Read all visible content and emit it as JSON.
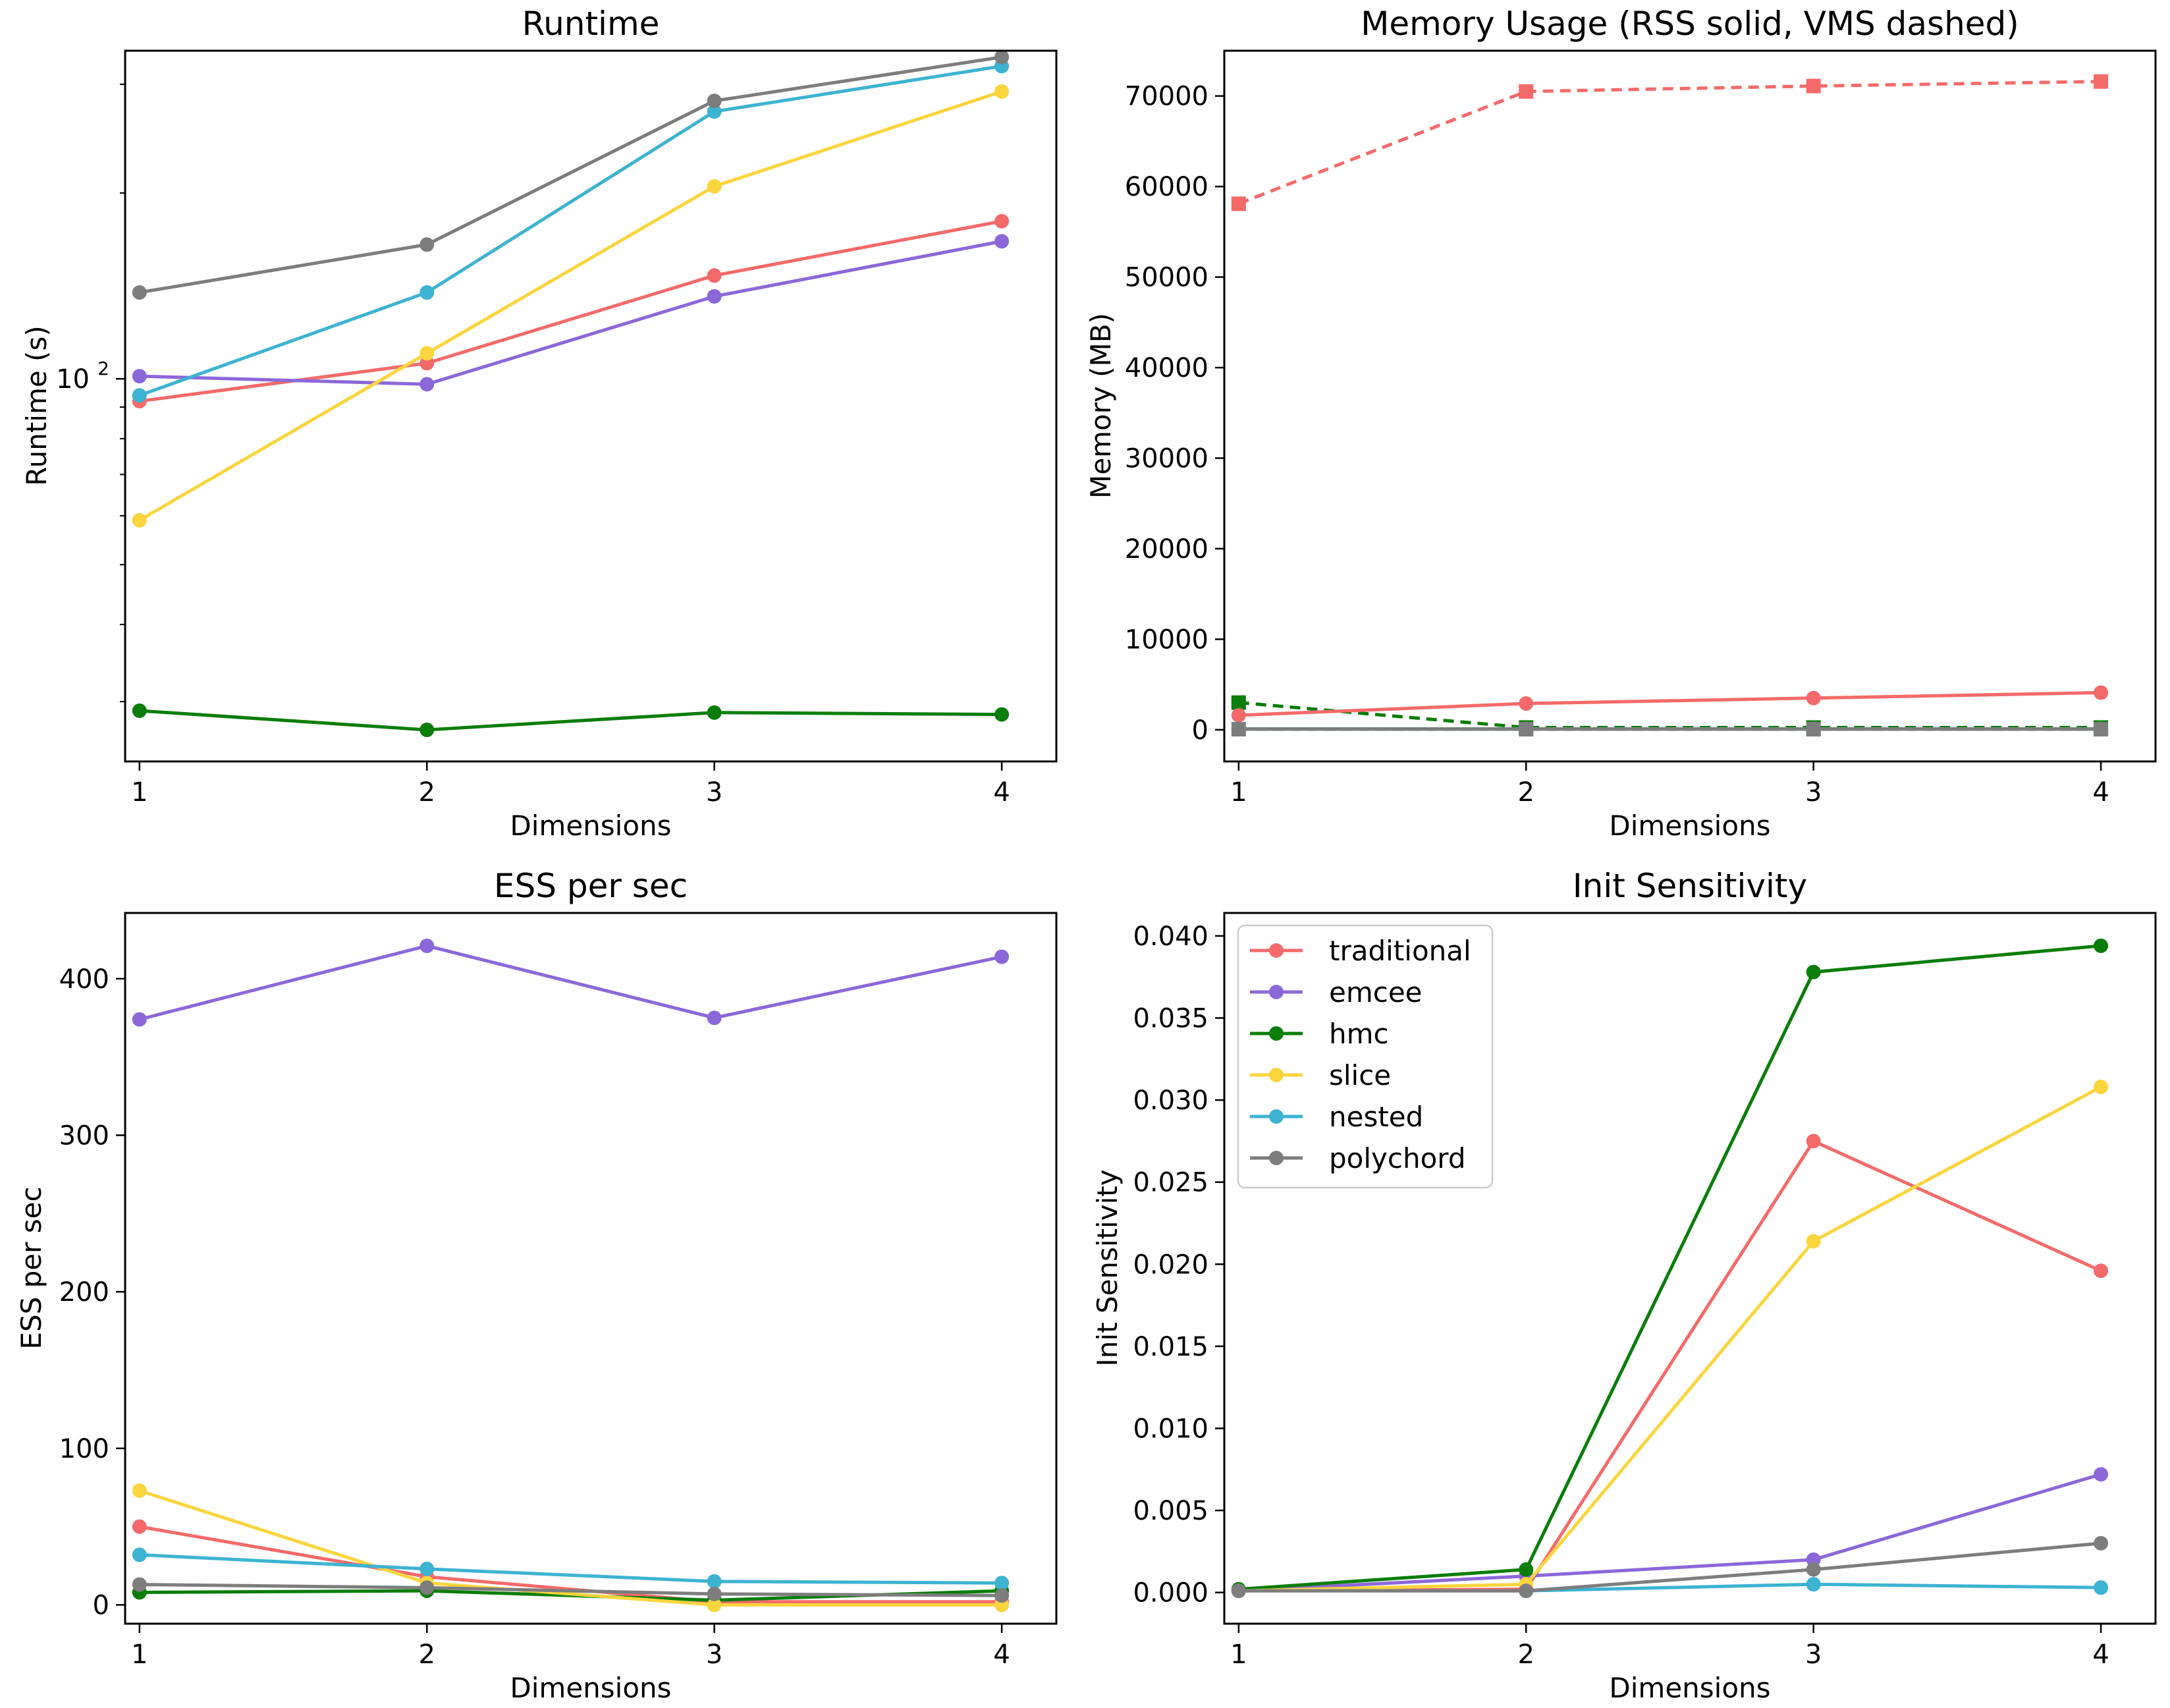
{
  "colors": {
    "traditional": "#f46a6a",
    "emcee": "#8c67d9",
    "hmc": "#0a7d0a",
    "slice": "#fbd53e",
    "nested": "#3db3d2",
    "polychord": "#7d7d7d"
  },
  "legend": [
    "traditional",
    "emcee",
    "hmc",
    "slice",
    "nested",
    "polychord"
  ],
  "chart_data": [
    {
      "id": "runtime",
      "type": "line",
      "title": "Runtime",
      "xlabel": "Dimensions",
      "ylabel": "Runtime (s)",
      "yscale": "log",
      "ylim": [
        24,
        340
      ],
      "xlim": [
        0.95,
        4.19
      ],
      "x": [
        1,
        2,
        3,
        4
      ],
      "xticks": [
        "1",
        "2",
        "3",
        "4"
      ],
      "yticks": [
        {
          "value": 100,
          "label": "10",
          "sup": "2"
        }
      ],
      "minor_yticks": [
        30,
        40,
        50,
        60,
        70,
        80,
        90,
        200,
        300
      ],
      "series": [
        {
          "name": "traditional",
          "values": [
            92,
            106,
            147,
            180
          ]
        },
        {
          "name": "emcee",
          "values": [
            101,
            98,
            136,
            167
          ]
        },
        {
          "name": "hmc",
          "values": [
            29,
            27,
            28.8,
            28.6
          ]
        },
        {
          "name": "slice",
          "values": [
            59,
            110,
            205,
            292
          ]
        },
        {
          "name": "nested",
          "values": [
            94,
            138,
            271,
            321
          ]
        },
        {
          "name": "polychord",
          "values": [
            138,
            165,
            282,
            332
          ]
        }
      ]
    },
    {
      "id": "memory",
      "type": "line",
      "title": "Memory Usage (RSS solid, VMS dashed)",
      "xlabel": "Dimensions",
      "ylabel": "Memory (MB)",
      "ylim": [
        -3500,
        75000
      ],
      "xlim": [
        0.95,
        4.19
      ],
      "x": [
        1,
        2,
        3,
        4
      ],
      "xticks": [
        "1",
        "2",
        "3",
        "4"
      ],
      "yticks": [
        0,
        10000,
        20000,
        30000,
        40000,
        50000,
        60000,
        70000
      ],
      "series": [
        {
          "name": "traditional",
          "style": "dashed",
          "values": [
            58100,
            70500,
            71100,
            71600
          ]
        },
        {
          "name": "hmc",
          "style": "dashed",
          "values": [
            3000,
            250,
            250,
            250
          ]
        },
        {
          "name": "polychord",
          "style": "dashed",
          "values": [
            60,
            60,
            60,
            60
          ]
        },
        {
          "name": "traditional",
          "style": "solid",
          "values": [
            1600,
            2900,
            3500,
            4100
          ]
        },
        {
          "name": "emcee",
          "style": "solid",
          "values": [
            80,
            80,
            80,
            80
          ]
        },
        {
          "name": "hmc",
          "style": "solid",
          "values": [
            80,
            80,
            80,
            80
          ]
        },
        {
          "name": "slice",
          "style": "solid",
          "values": [
            80,
            80,
            80,
            80
          ]
        },
        {
          "name": "nested",
          "style": "solid",
          "values": [
            80,
            80,
            80,
            80
          ]
        },
        {
          "name": "polychord",
          "style": "solid",
          "values": [
            80,
            80,
            80,
            80
          ]
        }
      ]
    },
    {
      "id": "ess",
      "type": "line",
      "title": "ESS per sec",
      "xlabel": "Dimensions",
      "ylabel": "ESS per sec",
      "ylim": [
        -12,
        442
      ],
      "xlim": [
        0.95,
        4.19
      ],
      "x": [
        1,
        2,
        3,
        4
      ],
      "xticks": [
        "1",
        "2",
        "3",
        "4"
      ],
      "yticks": [
        0,
        100,
        200,
        300,
        400
      ],
      "series": [
        {
          "name": "traditional",
          "values": [
            50,
            18,
            2,
            2
          ]
        },
        {
          "name": "emcee",
          "values": [
            374,
            421,
            375,
            414
          ]
        },
        {
          "name": "hmc",
          "values": [
            8,
            9,
            3,
            9
          ]
        },
        {
          "name": "slice",
          "values": [
            73,
            14,
            0,
            0
          ]
        },
        {
          "name": "nested",
          "values": [
            32,
            23,
            15,
            14
          ]
        },
        {
          "name": "polychord",
          "values": [
            13,
            11,
            7,
            6
          ]
        }
      ]
    },
    {
      "id": "init",
      "type": "line",
      "title": "Init Sensitivity",
      "xlabel": "Dimensions",
      "ylabel": "Init Sensitivity",
      "ylim": [
        -0.0019,
        0.0414
      ],
      "xlim": [
        0.95,
        4.19
      ],
      "x": [
        1,
        2,
        3,
        4
      ],
      "xticks": [
        "1",
        "2",
        "3",
        "4"
      ],
      "yticks": [
        "0.000",
        "0.005",
        "0.010",
        "0.015",
        "0.020",
        "0.025",
        "0.030",
        "0.035",
        "0.040"
      ],
      "legend_position": "upper left",
      "series": [
        {
          "name": "traditional",
          "values": [
            0.0001,
            0.0002,
            0.0275,
            0.0196
          ]
        },
        {
          "name": "emcee",
          "values": [
            0.0001,
            0.001,
            0.002,
            0.0072
          ]
        },
        {
          "name": "hmc",
          "values": [
            0.0002,
            0.0014,
            0.0378,
            0.0394
          ]
        },
        {
          "name": "slice",
          "values": [
            0.0001,
            0.0005,
            0.0214,
            0.0308
          ]
        },
        {
          "name": "nested",
          "values": [
            0.0001,
            0.0001,
            0.0005,
            0.0003
          ]
        },
        {
          "name": "polychord",
          "values": [
            0.0001,
            0.0001,
            0.0014,
            0.003
          ]
        }
      ]
    }
  ]
}
